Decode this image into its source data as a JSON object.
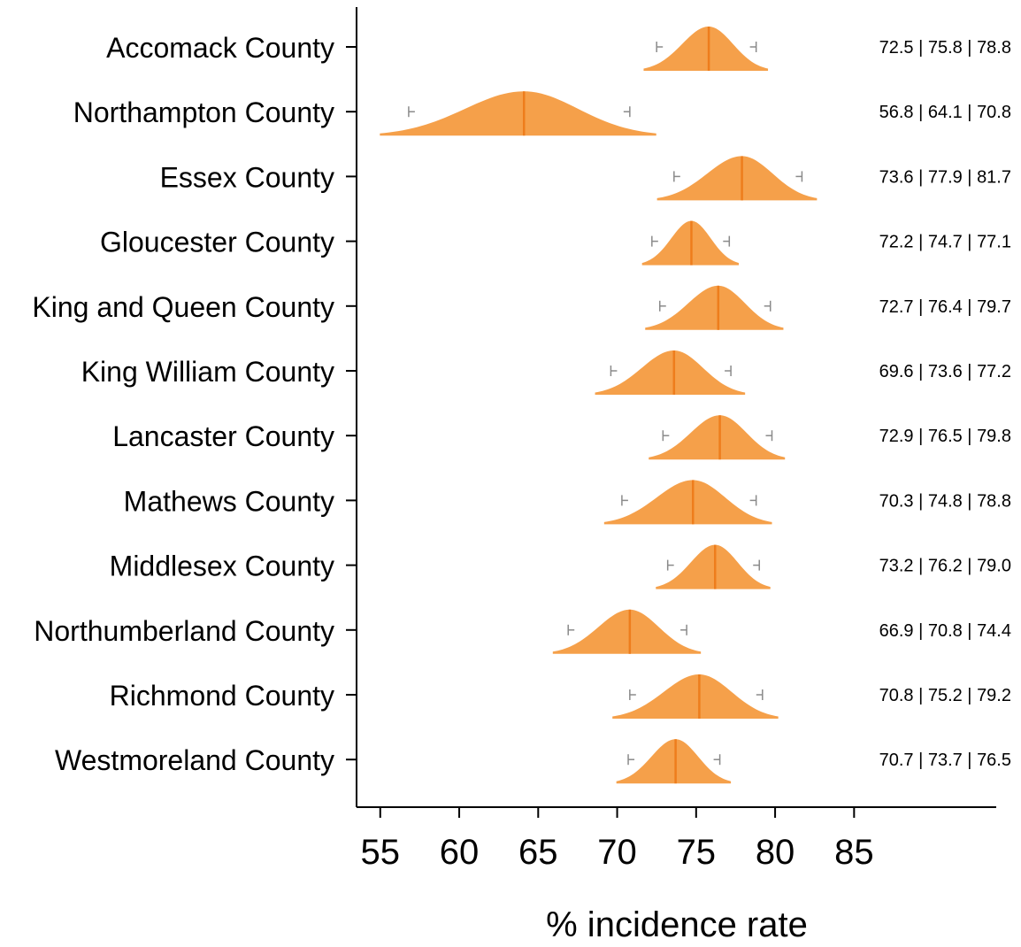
{
  "chart_data": {
    "type": "distribution",
    "title": "",
    "xlabel": "% incidence rate",
    "ylabel": "",
    "xlim": [
      53.5,
      94
    ],
    "xticks": [
      55,
      60,
      65,
      70,
      75,
      80,
      85
    ],
    "grid": false,
    "colors": {
      "fill": "#f5a04a",
      "median_line": "#ee7d1c",
      "whisker": "#8a8a8a",
      "axis": "#000000"
    },
    "categories": [
      "Accomack County",
      "Northampton County",
      "Essex County",
      "Gloucester County",
      "King and Queen County",
      "King William County",
      "Lancaster County",
      "Mathews County",
      "Middlesex County",
      "Northumberland County",
      "Richmond County",
      "Westmoreland County"
    ],
    "lower": [
      72.5,
      56.8,
      73.6,
      72.2,
      72.7,
      69.6,
      72.9,
      70.3,
      73.2,
      66.9,
      70.8,
      70.7
    ],
    "median": [
      75.8,
      64.1,
      77.9,
      74.7,
      76.4,
      73.6,
      76.5,
      74.8,
      76.2,
      70.8,
      75.2,
      73.7
    ],
    "upper": [
      78.8,
      70.8,
      81.7,
      77.1,
      79.7,
      77.2,
      79.8,
      78.8,
      79.0,
      74.4,
      79.2,
      76.5
    ],
    "annotations": [
      "72.5 | 75.8 | 78.8",
      "56.8 | 64.1 | 70.8",
      "73.6 | 77.9 | 81.7",
      "72.2 | 74.7 | 77.1",
      "72.7 | 76.4 | 79.7",
      "69.6 | 73.6 | 77.2",
      "72.9 | 76.5 | 79.8",
      "70.3 | 74.8 | 78.8",
      "73.2 | 76.2 | 79.0",
      "66.9 | 70.8 | 74.4",
      "70.8 | 75.2 | 79.2",
      "70.7 | 73.7 | 76.5"
    ]
  }
}
